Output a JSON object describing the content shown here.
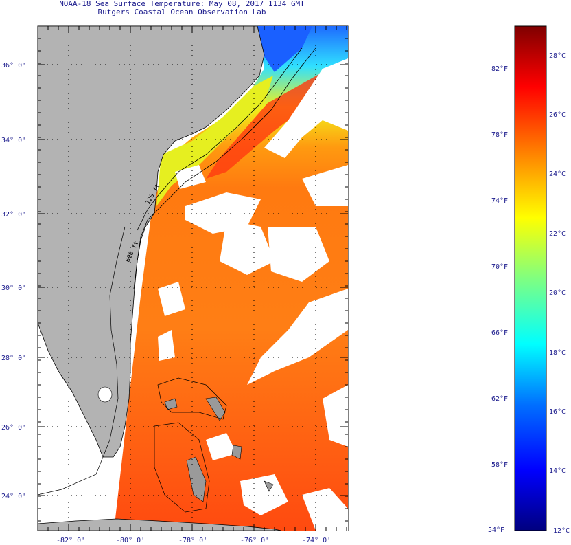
{
  "title": "NOAA-18 Sea Surface Temperature:  May 08, 2017 1134 GMT",
  "subtitle": "Rutgers Coastal Ocean Observation Lab",
  "map": {
    "lat_labels": [
      "36° 0'",
      "34° 0'",
      "32° 0'",
      "30° 0'",
      "28° 0'",
      "26° 0'",
      "24° 0'"
    ],
    "lon_labels": [
      "-82° 0'",
      "-80° 0'",
      "-78° 0'",
      "-76° 0'",
      "-74° 0'"
    ],
    "isobath_labels": [
      "120 ft",
      "600 ft"
    ],
    "colors": {
      "land": "#b3b3b3",
      "cloud": "#ffffff",
      "frame": "#000000",
      "grid": "#000000"
    }
  },
  "colorbar": {
    "fahrenheit_labels": [
      "82°F",
      "78°F",
      "74°F",
      "70°F",
      "66°F",
      "62°F",
      "58°F",
      "54°F"
    ],
    "celsius_labels": [
      "28°C",
      "26°C",
      "24°C",
      "22°C",
      "20°C",
      "18°C",
      "16°C",
      "14°C",
      "12°C"
    ],
    "range_c": [
      12,
      29
    ],
    "colors": [
      "#00007f",
      "#0000ff",
      "#007fff",
      "#00ffff",
      "#7fff7f",
      "#ffff00",
      "#ff7f00",
      "#ff0000",
      "#7f0000"
    ]
  }
}
